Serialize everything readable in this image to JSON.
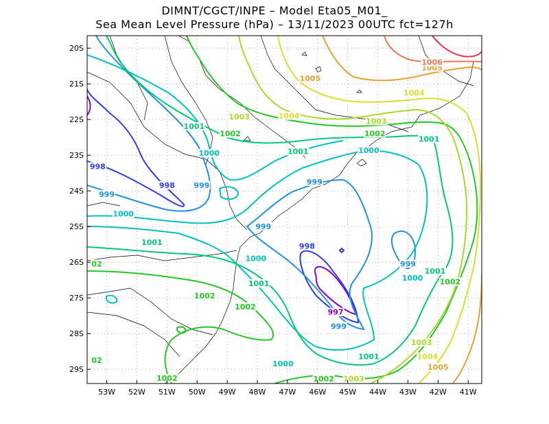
{
  "title": {
    "line1": "DIMNT/CGCT/INPE –  Model Eta05_M01_",
    "line2": "Sea Mean Level Pressure (hPa) – 13/11/2023 00UTC fct=127h"
  },
  "axes": {
    "lon_ticks": [
      {
        "lon": -53,
        "label": "53W"
      },
      {
        "lon": -52,
        "label": "52W"
      },
      {
        "lon": -51,
        "label": "51W"
      },
      {
        "lon": -50,
        "label": "50W"
      },
      {
        "lon": -49,
        "label": "49W"
      },
      {
        "lon": -48,
        "label": "48W"
      },
      {
        "lon": -47,
        "label": "47W"
      },
      {
        "lon": -46,
        "label": "46W"
      },
      {
        "lon": -45,
        "label": "45W"
      },
      {
        "lon": -44,
        "label": "44W"
      },
      {
        "lon": -43,
        "label": "43W"
      },
      {
        "lon": -42,
        "label": "42W"
      },
      {
        "lon": -41,
        "label": "41W"
      }
    ],
    "lat_ticks": [
      {
        "lat": -20,
        "label": "20S"
      },
      {
        "lat": -21,
        "label": "21S"
      },
      {
        "lat": -22,
        "label": "22S"
      },
      {
        "lat": -23,
        "label": "23S"
      },
      {
        "lat": -24,
        "label": "24S"
      },
      {
        "lat": -25,
        "label": "25S"
      },
      {
        "lat": -26,
        "label": "26S"
      },
      {
        "lat": -27,
        "label": "27S"
      },
      {
        "lat": -28,
        "label": "28S"
      },
      {
        "lat": -29,
        "label": "29S"
      }
    ],
    "lon_range": [
      -53.65,
      -40.55
    ],
    "lat_range": [
      -29.4,
      -19.65
    ],
    "grid": "dotted"
  },
  "levels": {
    "997": "#8a00c8",
    "998": "#2a3ee0",
    "999": "#1e90e8",
    "1000": "#00c0c0",
    "1001": "#00c878",
    "1002": "#22c822",
    "1003": "#a8d828",
    "1004": "#dcdc30",
    "1005": "#e8a030",
    "1006": "#e87850",
    "1007": "#e8305a"
  },
  "contour_labels": [
    {
      "text": "998",
      "level": "998",
      "lon": -53.3,
      "lat": -23.37
    },
    {
      "text": "998",
      "level": "998",
      "lon": -51.0,
      "lat": -23.9
    },
    {
      "text": "999",
      "level": "999",
      "lon": -53.0,
      "lat": -24.15
    },
    {
      "text": "999",
      "level": "999",
      "lon": -49.85,
      "lat": -23.9
    },
    {
      "text": "999",
      "level": "999",
      "lon": -46.1,
      "lat": -23.8
    },
    {
      "text": "999",
      "level": "999",
      "lon": -47.8,
      "lat": -25.05
    },
    {
      "text": "999",
      "level": "999",
      "lon": -43.0,
      "lat": -26.1
    },
    {
      "text": "999",
      "level": "999",
      "lon": -45.3,
      "lat": -27.85
    },
    {
      "text": "998",
      "level": "998",
      "lon": -46.35,
      "lat": -25.6
    },
    {
      "text": "997",
      "level": "997",
      "lon": -45.4,
      "lat": -27.45
    },
    {
      "text": "1000",
      "level": "1000",
      "lon": -52.45,
      "lat": -24.7
    },
    {
      "text": "1000",
      "level": "1000",
      "lon": -49.6,
      "lat": -23.0
    },
    {
      "text": "1000",
      "level": "1000",
      "lon": -44.3,
      "lat": -22.92
    },
    {
      "text": "1000",
      "level": "1000",
      "lon": -48.05,
      "lat": -25.95
    },
    {
      "text": "1000",
      "level": "1000",
      "lon": -42.85,
      "lat": -26.5
    },
    {
      "text": "1000",
      "level": "1000",
      "lon": -47.15,
      "lat": -28.9
    },
    {
      "text": "1001",
      "level": "1001",
      "lon": -50.1,
      "lat": -22.25
    },
    {
      "text": "1001",
      "level": "1001",
      "lon": -46.65,
      "lat": -22.95
    },
    {
      "text": "1001",
      "level": "1001",
      "lon": -42.3,
      "lat": -22.6
    },
    {
      "text": "1001",
      "level": "1001",
      "lon": -51.5,
      "lat": -25.5
    },
    {
      "text": "1001",
      "level": "1001",
      "lon": -47.95,
      "lat": -26.65
    },
    {
      "text": "1001",
      "level": "1001",
      "lon": -42.1,
      "lat": -26.3
    },
    {
      "text": "1001",
      "level": "1001",
      "lon": -44.3,
      "lat": -28.7
    },
    {
      "text": "1002",
      "level": "1002",
      "lon": -48.9,
      "lat": -22.45
    },
    {
      "text": "1002",
      "level": "1002",
      "lon": -44.1,
      "lat": -22.45
    },
    {
      "text": "1002",
      "level": "1002",
      "lon": -41.6,
      "lat": -26.6
    },
    {
      "text": "1002",
      "level": "1002",
      "lon": -49.75,
      "lat": -27.0
    },
    {
      "text": "1002",
      "level": "1002",
      "lon": -48.4,
      "lat": -27.3
    },
    {
      "text": "1002",
      "level": "1002",
      "lon": -51.0,
      "lat": -29.3
    },
    {
      "text": "1002",
      "level": "1002",
      "lon": -45.8,
      "lat": -29.6
    },
    {
      "text": "02",
      "level": "1002",
      "lon": -53.45,
      "lat": -26.1
    },
    {
      "text": "02",
      "level": "1002",
      "lon": -53.45,
      "lat": -28.8
    },
    {
      "text": "1003",
      "level": "1003",
      "lon": -48.6,
      "lat": -21.98
    },
    {
      "text": "1003",
      "level": "1003",
      "lon": -44.05,
      "lat": -22.1
    },
    {
      "text": "1003",
      "level": "1003",
      "lon": -42.55,
      "lat": -28.3
    },
    {
      "text": "1003",
      "level": "1003",
      "lon": -44.8,
      "lat": -29.65
    },
    {
      "text": "1004",
      "level": "1004",
      "lon": -46.95,
      "lat": -21.95
    },
    {
      "text": "1004",
      "level": "1004",
      "lon": -42.8,
      "lat": -21.3
    },
    {
      "text": "1004",
      "level": "1004",
      "lon": -42.35,
      "lat": -28.7
    },
    {
      "text": "1005",
      "level": "1005",
      "lon": -46.25,
      "lat": -20.9
    },
    {
      "text": "1005",
      "level": "1005",
      "lon": -42.2,
      "lat": -20.6
    },
    {
      "text": "1005",
      "level": "1005",
      "lon": -42.0,
      "lat": -29.0
    },
    {
      "text": "1006",
      "level": "1006",
      "lon": -42.2,
      "lat": -20.45
    }
  ]
}
